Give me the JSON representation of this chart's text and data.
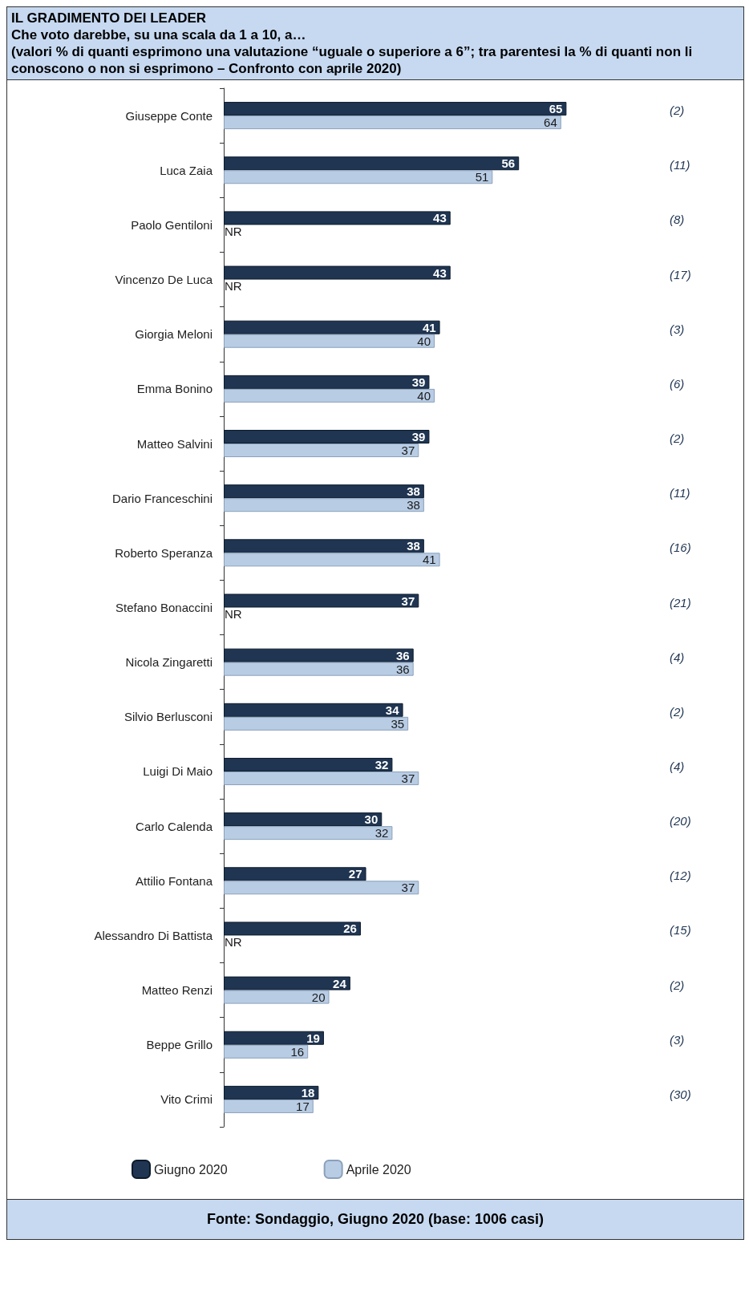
{
  "chart_data": {
    "type": "bar",
    "orientation": "horizontal",
    "title": "IL GRADIMENTO DEI LEADER",
    "subtitle": "Che voto darebbe, su una scala da 1 a 10, a…\n(valori % di quanti esprimono una valutazione “uguale o superiore a 6”; tra parentesi la % di quanti non li conoscono o non si esprimono – Confronto con aprile 2020)",
    "categories": [
      "Giuseppe Conte",
      "Luca Zaia",
      "Paolo Gentiloni",
      "Vincenzo De Luca",
      "Giorgia Meloni",
      "Emma Bonino",
      "Matteo Salvini",
      "Dario Franceschini",
      "Roberto Speranza",
      "Stefano Bonaccini",
      "Nicola Zingaretti",
      "Silvio Berlusconi",
      "Luigi Di Maio",
      "Carlo Calenda",
      "Attilio Fontana",
      "Alessandro Di Battista",
      "Matteo Renzi",
      "Beppe Grillo",
      "Vito Crimi"
    ],
    "series": [
      {
        "name": "Giugno 2020",
        "color": "#1f3552",
        "values": [
          65,
          56,
          43,
          43,
          41,
          39,
          39,
          38,
          38,
          37,
          36,
          34,
          32,
          30,
          27,
          26,
          24,
          19,
          18
        ]
      },
      {
        "name": "Aprile 2020",
        "color": "#b8cce4",
        "values": [
          64,
          51,
          null,
          null,
          40,
          40,
          37,
          38,
          41,
          null,
          36,
          35,
          37,
          32,
          37,
          null,
          20,
          16,
          17
        ],
        "value_labels": [
          "64",
          "51",
          "NR",
          "NR",
          "40",
          "40",
          "37",
          "38",
          "41",
          "NR",
          "36",
          "35",
          "37",
          "32",
          "37",
          "NR",
          "20",
          "16",
          "17"
        ]
      }
    ],
    "data_labels": true,
    "legend": "bottom left",
    "annotations": [
      "(2)",
      "(11)",
      "(8)",
      "(17)",
      "(3)",
      "(6)",
      "(2)",
      "(11)",
      "(16)",
      "(21)",
      "(4)",
      "(2)",
      "(4)",
      "(20)",
      "(12)",
      "(15)",
      "(2)",
      "(3)",
      "(30)",
      "Fonte: Sondaggio, Giugno 2020 (base: 1006 casi)"
    ]
  }
}
